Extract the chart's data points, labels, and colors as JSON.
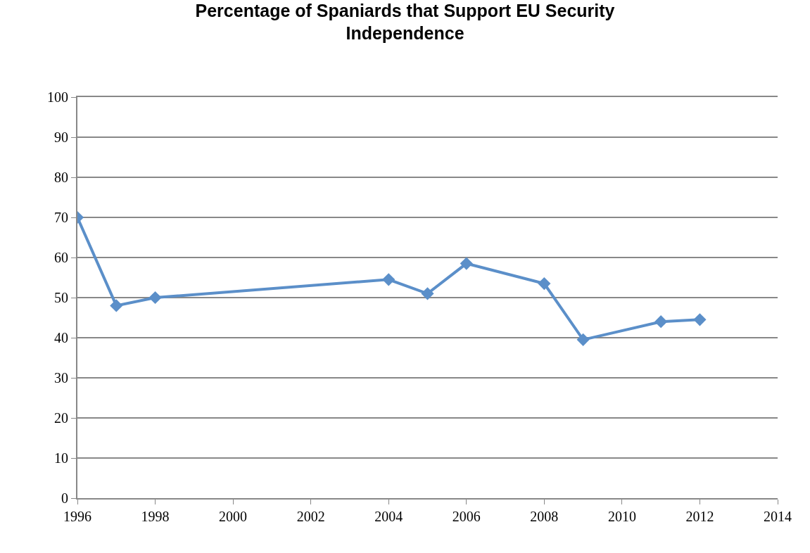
{
  "chart_data": {
    "type": "line",
    "title": "Percentage of Spaniards that Support EU Security\nIndependence",
    "x": [
      1996,
      1997,
      1998,
      2004,
      2005,
      2006,
      2008,
      2009,
      2011,
      2012
    ],
    "series": [
      {
        "color": "#5b8fc9",
        "values": [
          70,
          48,
          50,
          54.5,
          51,
          58.5,
          53.5,
          39.5,
          44,
          44.5
        ]
      }
    ],
    "xlim": [
      1996,
      2014
    ],
    "xticks": [
      1996,
      1998,
      2000,
      2002,
      2004,
      2006,
      2008,
      2010,
      2012,
      2014
    ],
    "ylim": [
      0,
      100
    ],
    "yticks": [
      0,
      10,
      20,
      30,
      40,
      50,
      60,
      70,
      80,
      90,
      100
    ],
    "grid": "y",
    "marker": "diamond",
    "line_style": "solid"
  }
}
